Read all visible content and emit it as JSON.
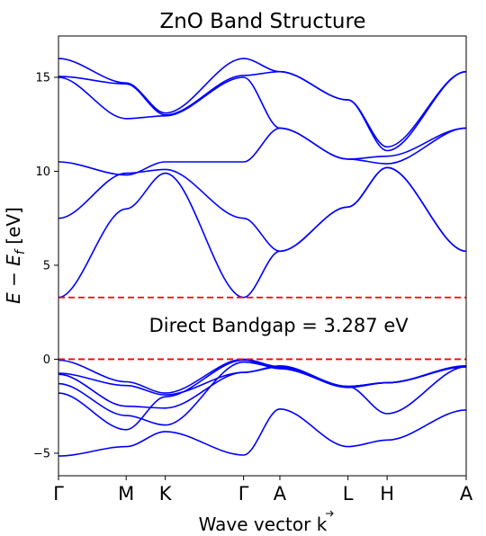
{
  "chart_data": {
    "type": "line",
    "title": "ZnO Band Structure",
    "xlabel": "Wave vector k",
    "ylabel_parts": {
      "lead": "E − E",
      "sub": "f",
      "unit": " [eV]"
    },
    "ylim": [
      -6.2,
      17.2
    ],
    "yticks": [
      -5,
      0,
      5,
      10,
      15
    ],
    "kpoints": [
      {
        "label": "Γ",
        "x": 0
      },
      {
        "label": "M",
        "x": 0.166
      },
      {
        "label": "K",
        "x": 0.262
      },
      {
        "label": "Γ",
        "x": 0.454
      },
      {
        "label": "A",
        "x": 0.543
      },
      {
        "label": "L",
        "x": 0.71
      },
      {
        "label": "H",
        "x": 0.806
      },
      {
        "label": "A",
        "x": 1.0
      }
    ],
    "reference_lines": [
      {
        "name": "conduction-band-minimum",
        "y": 3.287,
        "color": "#ff0000"
      },
      {
        "name": "valence-band-maximum",
        "y": 0,
        "color": "#ff0000"
      }
    ],
    "annotation": {
      "text": "Direct Bandgap = 3.287 eV",
      "x": 0.54,
      "y": 1.45
    },
    "band_color": "#0000ff",
    "x": [
      0,
      0.166,
      0.262,
      0.454,
      0.543,
      0.71,
      0.806,
      1.0
    ],
    "series": [
      {
        "values": [
          -5.15,
          -4.65,
          -3.85,
          -5.1,
          -2.65,
          -4.65,
          -4.3,
          -2.7
        ]
      },
      {
        "values": [
          -1.8,
          -3.75,
          -2.0,
          -0.05,
          -0.5,
          -1.45,
          -2.9,
          -0.4
        ]
      },
      {
        "values": [
          -1.3,
          -3.0,
          -3.5,
          -0.15,
          -0.45,
          -1.5,
          -1.25,
          -0.4
        ]
      },
      {
        "values": [
          -0.8,
          -2.5,
          -2.6,
          -0.7,
          -0.4,
          -1.45,
          -1.25,
          -0.4
        ]
      },
      {
        "values": [
          -0.75,
          -1.4,
          -1.9,
          -0.7,
          -0.35,
          -1.45,
          -1.25,
          -0.35
        ]
      },
      {
        "values": [
          -0.05,
          -1.2,
          -1.8,
          0.0,
          -0.4,
          -1.45,
          -1.25,
          -0.4
        ]
      },
      {
        "values": [
          3.287,
          8.0,
          9.9,
          3.287,
          5.75,
          8.1,
          10.2,
          5.75
        ]
      },
      {
        "values": [
          7.5,
          9.9,
          10.1,
          7.5,
          5.75,
          8.1,
          10.2,
          5.75
        ]
      },
      {
        "values": [
          10.5,
          9.8,
          10.5,
          10.5,
          12.3,
          10.65,
          10.4,
          12.3
        ]
      },
      {
        "values": [
          15.0,
          12.8,
          12.95,
          15.0,
          12.3,
          10.65,
          10.8,
          12.3
        ]
      },
      {
        "values": [
          15.05,
          14.65,
          13.0,
          15.1,
          15.3,
          13.8,
          11.1,
          15.3
        ]
      },
      {
        "values": [
          16.0,
          14.7,
          13.1,
          16.0,
          15.3,
          13.8,
          11.3,
          15.3
        ]
      }
    ]
  }
}
